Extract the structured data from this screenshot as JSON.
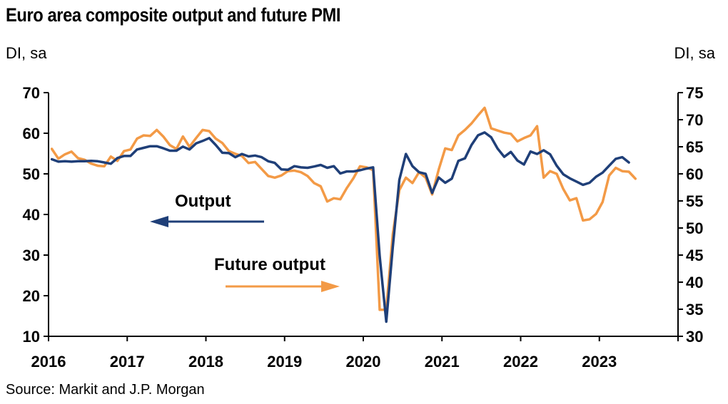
{
  "title": "Euro area composite output and future PMI",
  "left_unit": "DI, sa",
  "right_unit": "DI, sa",
  "source": "Source: Markit and J.P. Morgan",
  "colors": {
    "output": "#1f3f78",
    "future_output": "#f39a46"
  },
  "chart_data": {
    "type": "line",
    "x_labels": [
      "2016",
      "2017",
      "2018",
      "2019",
      "2020",
      "2021",
      "2022",
      "2023"
    ],
    "y_left": {
      "range": [
        10,
        70
      ],
      "ticks": [
        10,
        20,
        30,
        40,
        50,
        60,
        70
      ]
    },
    "y_right": {
      "range": [
        30,
        75
      ],
      "ticks": [
        30,
        35,
        40,
        45,
        50,
        55,
        60,
        65,
        70,
        75
      ]
    },
    "annotations": [
      {
        "text": "Output",
        "arrow": "left",
        "series": "Output"
      },
      {
        "text": "Future output",
        "arrow": "right",
        "series": "Future output"
      }
    ],
    "series": [
      {
        "name": "Output",
        "axis": "left",
        "start": "2016-01",
        "values": [
          53.6,
          53.0,
          53.1,
          53.0,
          53.1,
          53.1,
          53.2,
          53.1,
          52.8,
          52.5,
          53.9,
          54.4,
          54.4,
          56.0,
          56.4,
          56.8,
          56.8,
          56.3,
          55.7,
          55.7,
          56.7,
          56.0,
          57.5,
          58.1,
          58.8,
          57.1,
          55.2,
          55.1,
          54.1,
          54.9,
          54.3,
          54.5,
          54.1,
          53.1,
          52.7,
          51.1,
          51.0,
          51.9,
          51.6,
          51.5,
          51.8,
          52.2,
          51.5,
          51.9,
          50.1,
          50.6,
          50.6,
          50.9,
          51.3,
          51.6,
          29.7,
          13.6,
          31.9,
          48.5,
          54.9,
          51.9,
          50.4,
          50.0,
          45.3,
          49.1,
          47.8,
          48.8,
          53.2,
          53.8,
          57.1,
          59.5,
          60.2,
          59.0,
          56.2,
          54.2,
          55.4,
          53.3,
          52.3,
          55.5,
          54.9,
          55.8,
          54.8,
          52.0,
          49.9,
          48.9,
          48.1,
          47.3,
          47.8,
          49.3,
          50.3,
          52.0,
          53.7,
          54.1,
          52.8
        ]
      },
      {
        "name": "Future output",
        "axis": "right",
        "start": "2016-01",
        "values": [
          64.6,
          62.8,
          63.6,
          64.1,
          62.9,
          62.6,
          61.9,
          61.5,
          61.4,
          63.2,
          62.4,
          64.2,
          64.5,
          66.5,
          67.1,
          67.0,
          68.1,
          66.9,
          65.3,
          64.6,
          66.9,
          65.0,
          66.6,
          68.1,
          67.9,
          66.5,
          65.7,
          64.2,
          63.7,
          63.3,
          62.0,
          62.2,
          60.9,
          59.6,
          59.3,
          59.7,
          60.5,
          60.6,
          60.3,
          59.6,
          58.3,
          57.7,
          54.9,
          55.5,
          55.3,
          57.4,
          59.2,
          61.4,
          61.2,
          60.7,
          34.9,
          34.9,
          48.8,
          57.0,
          59.3,
          58.3,
          60.3,
          59.3,
          56.2,
          60.8,
          64.7,
          64.4,
          67.1,
          68.1,
          69.3,
          70.8,
          72.2,
          68.4,
          68.0,
          67.6,
          67.4,
          66.0,
          66.6,
          67.1,
          68.8,
          59.3,
          60.5,
          60.0,
          57.2,
          55.1,
          55.5,
          51.4,
          51.6,
          52.6,
          54.8,
          59.7,
          61.1,
          60.5,
          60.4,
          59.1
        ]
      }
    ]
  }
}
